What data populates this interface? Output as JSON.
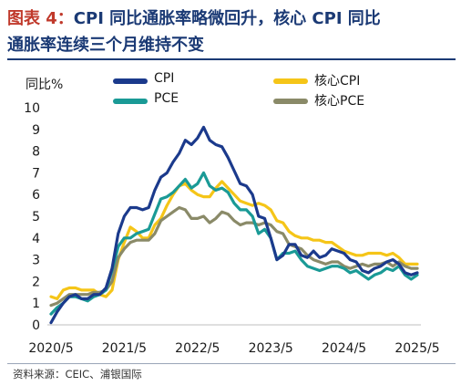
{
  "title": {
    "figure_label": "图表 4：",
    "line1": "CPI 同比通胀率略微回升，核心 CPI 同比",
    "line2": "通胀率连续三个月维持不变"
  },
  "source": "资料来源：CEIC、浦银国际",
  "chart_data": {
    "type": "line",
    "ylabel": "同比%",
    "ylim": [
      0,
      10
    ],
    "yticks": [
      0,
      1,
      2,
      3,
      4,
      5,
      6,
      7,
      8,
      9,
      10
    ],
    "x_range": [
      "2020-05",
      "2025-05"
    ],
    "xticks": [
      "2020/5",
      "2021/5",
      "2022/5",
      "2023/5",
      "2024/5",
      "2025/5"
    ],
    "legend_position": "top",
    "series": [
      {
        "name": "CPI",
        "color": "#1b3a8c",
        "months": [
          "2020-05",
          "2020-06",
          "2020-07",
          "2020-08",
          "2020-09",
          "2020-10",
          "2020-11",
          "2020-12",
          "2021-01",
          "2021-02",
          "2021-03",
          "2021-04",
          "2021-05",
          "2021-06",
          "2021-07",
          "2021-08",
          "2021-09",
          "2021-10",
          "2021-11",
          "2021-12",
          "2022-01",
          "2022-02",
          "2022-03",
          "2022-04",
          "2022-05",
          "2022-06",
          "2022-07",
          "2022-08",
          "2022-09",
          "2022-10",
          "2022-11",
          "2022-12",
          "2023-01",
          "2023-02",
          "2023-03",
          "2023-04",
          "2023-05",
          "2023-06",
          "2023-07",
          "2023-08",
          "2023-09",
          "2023-10",
          "2023-11",
          "2023-12",
          "2024-01",
          "2024-02",
          "2024-03",
          "2024-04",
          "2024-05",
          "2024-06",
          "2024-07",
          "2024-08",
          "2024-09",
          "2024-10",
          "2024-11",
          "2024-12",
          "2025-01",
          "2025-02",
          "2025-03",
          "2025-04",
          "2025-05"
        ],
        "values": [
          0.1,
          0.6,
          1.0,
          1.3,
          1.4,
          1.2,
          1.2,
          1.4,
          1.4,
          1.7,
          2.6,
          4.2,
          5.0,
          5.4,
          5.4,
          5.3,
          5.4,
          6.2,
          6.8,
          7.0,
          7.5,
          7.9,
          8.5,
          8.3,
          8.6,
          9.1,
          8.5,
          8.3,
          8.2,
          7.7,
          7.1,
          6.5,
          6.4,
          6.0,
          5.0,
          4.9,
          4.0,
          3.0,
          3.2,
          3.7,
          3.7,
          3.2,
          3.1,
          3.4,
          3.1,
          3.2,
          3.5,
          3.4,
          3.3,
          3.0,
          2.9,
          2.5,
          2.4,
          2.6,
          2.7,
          2.9,
          3.0,
          2.8,
          2.4,
          2.3,
          2.4
        ]
      },
      {
        "name": "核心CPI",
        "color": "#f5c518",
        "months": [
          "2020-05",
          "2020-06",
          "2020-07",
          "2020-08",
          "2020-09",
          "2020-10",
          "2020-11",
          "2020-12",
          "2021-01",
          "2021-02",
          "2021-03",
          "2021-04",
          "2021-05",
          "2021-06",
          "2021-07",
          "2021-08",
          "2021-09",
          "2021-10",
          "2021-11",
          "2021-12",
          "2022-01",
          "2022-02",
          "2022-03",
          "2022-04",
          "2022-05",
          "2022-06",
          "2022-07",
          "2022-08",
          "2022-09",
          "2022-10",
          "2022-11",
          "2022-12",
          "2023-01",
          "2023-02",
          "2023-03",
          "2023-04",
          "2023-05",
          "2023-06",
          "2023-07",
          "2023-08",
          "2023-09",
          "2023-10",
          "2023-11",
          "2023-12",
          "2024-01",
          "2024-02",
          "2024-03",
          "2024-04",
          "2024-05",
          "2024-06",
          "2024-07",
          "2024-08",
          "2024-09",
          "2024-10",
          "2024-11",
          "2024-12",
          "2025-01",
          "2025-02",
          "2025-03",
          "2025-04",
          "2025-05"
        ],
        "values": [
          1.3,
          1.2,
          1.6,
          1.7,
          1.7,
          1.6,
          1.6,
          1.6,
          1.4,
          1.3,
          1.6,
          3.0,
          3.8,
          4.5,
          4.3,
          4.0,
          4.0,
          4.6,
          4.9,
          5.5,
          6.0,
          6.4,
          6.5,
          6.2,
          6.0,
          5.9,
          5.9,
          6.3,
          6.6,
          6.3,
          6.0,
          5.7,
          5.6,
          5.5,
          5.6,
          5.5,
          5.3,
          4.8,
          4.7,
          4.3,
          4.1,
          4.0,
          4.0,
          3.9,
          3.9,
          3.8,
          3.8,
          3.6,
          3.4,
          3.3,
          3.2,
          3.2,
          3.3,
          3.3,
          3.3,
          3.2,
          3.3,
          3.1,
          2.8,
          2.8,
          2.8
        ]
      },
      {
        "name": "PCE",
        "color": "#1a9a96",
        "months": [
          "2020-05",
          "2020-06",
          "2020-07",
          "2020-08",
          "2020-09",
          "2020-10",
          "2020-11",
          "2020-12",
          "2021-01",
          "2021-02",
          "2021-03",
          "2021-04",
          "2021-05",
          "2021-06",
          "2021-07",
          "2021-08",
          "2021-09",
          "2021-10",
          "2021-11",
          "2021-12",
          "2022-01",
          "2022-02",
          "2022-03",
          "2022-04",
          "2022-05",
          "2022-06",
          "2022-07",
          "2022-08",
          "2022-09",
          "2022-10",
          "2022-11",
          "2022-12",
          "2023-01",
          "2023-02",
          "2023-03",
          "2023-04",
          "2023-05",
          "2023-06",
          "2023-07",
          "2023-08",
          "2023-09",
          "2023-10",
          "2023-11",
          "2023-12",
          "2024-01",
          "2024-02",
          "2024-03",
          "2024-04",
          "2024-05",
          "2024-06",
          "2024-07",
          "2024-08",
          "2024-09",
          "2024-10",
          "2024-11",
          "2024-12",
          "2025-01",
          "2025-02",
          "2025-03",
          "2025-04",
          "2025-05"
        ],
        "values": [
          0.5,
          0.8,
          1.0,
          1.3,
          1.3,
          1.2,
          1.1,
          1.3,
          1.4,
          1.6,
          2.5,
          3.6,
          4.0,
          4.0,
          4.2,
          4.3,
          4.4,
          5.1,
          5.8,
          5.9,
          6.1,
          6.4,
          6.7,
          6.3,
          6.5,
          7.0,
          6.4,
          6.2,
          6.3,
          6.1,
          5.6,
          5.3,
          5.3,
          5.0,
          4.2,
          4.4,
          4.0,
          3.0,
          3.3,
          3.3,
          3.4,
          3.0,
          2.7,
          2.6,
          2.5,
          2.6,
          2.7,
          2.7,
          2.6,
          2.4,
          2.5,
          2.3,
          2.1,
          2.3,
          2.4,
          2.6,
          2.5,
          2.7,
          2.3,
          2.1,
          2.3
        ]
      },
      {
        "name": "核心PCE",
        "color": "#8a8a68",
        "months": [
          "2020-05",
          "2020-06",
          "2020-07",
          "2020-08",
          "2020-09",
          "2020-10",
          "2020-11",
          "2020-12",
          "2021-01",
          "2021-02",
          "2021-03",
          "2021-04",
          "2021-05",
          "2021-06",
          "2021-07",
          "2021-08",
          "2021-09",
          "2021-10",
          "2021-11",
          "2021-12",
          "2022-01",
          "2022-02",
          "2022-03",
          "2022-04",
          "2022-05",
          "2022-06",
          "2022-07",
          "2022-08",
          "2022-09",
          "2022-10",
          "2022-11",
          "2022-12",
          "2023-01",
          "2023-02",
          "2023-03",
          "2023-04",
          "2023-05",
          "2023-06",
          "2023-07",
          "2023-08",
          "2023-09",
          "2023-10",
          "2023-11",
          "2023-12",
          "2024-01",
          "2024-02",
          "2024-03",
          "2024-04",
          "2024-05",
          "2024-06",
          "2024-07",
          "2024-08",
          "2024-09",
          "2024-10",
          "2024-11",
          "2024-12",
          "2025-01",
          "2025-02",
          "2025-03",
          "2025-04",
          "2025-05"
        ],
        "values": [
          0.9,
          1.0,
          1.2,
          1.4,
          1.4,
          1.4,
          1.4,
          1.5,
          1.5,
          1.6,
          2.0,
          3.1,
          3.5,
          3.8,
          3.9,
          3.9,
          3.9,
          4.2,
          4.8,
          5.0,
          5.2,
          5.4,
          5.3,
          4.9,
          4.9,
          5.0,
          4.7,
          4.9,
          5.2,
          5.1,
          4.8,
          4.6,
          4.7,
          4.7,
          4.6,
          4.7,
          4.6,
          4.3,
          4.2,
          3.7,
          3.6,
          3.5,
          3.2,
          3.0,
          2.9,
          2.8,
          2.9,
          2.9,
          2.7,
          2.6,
          2.7,
          2.8,
          2.7,
          2.8,
          2.8,
          2.9,
          2.7,
          2.9,
          2.7,
          2.6,
          2.6
        ]
      }
    ]
  }
}
